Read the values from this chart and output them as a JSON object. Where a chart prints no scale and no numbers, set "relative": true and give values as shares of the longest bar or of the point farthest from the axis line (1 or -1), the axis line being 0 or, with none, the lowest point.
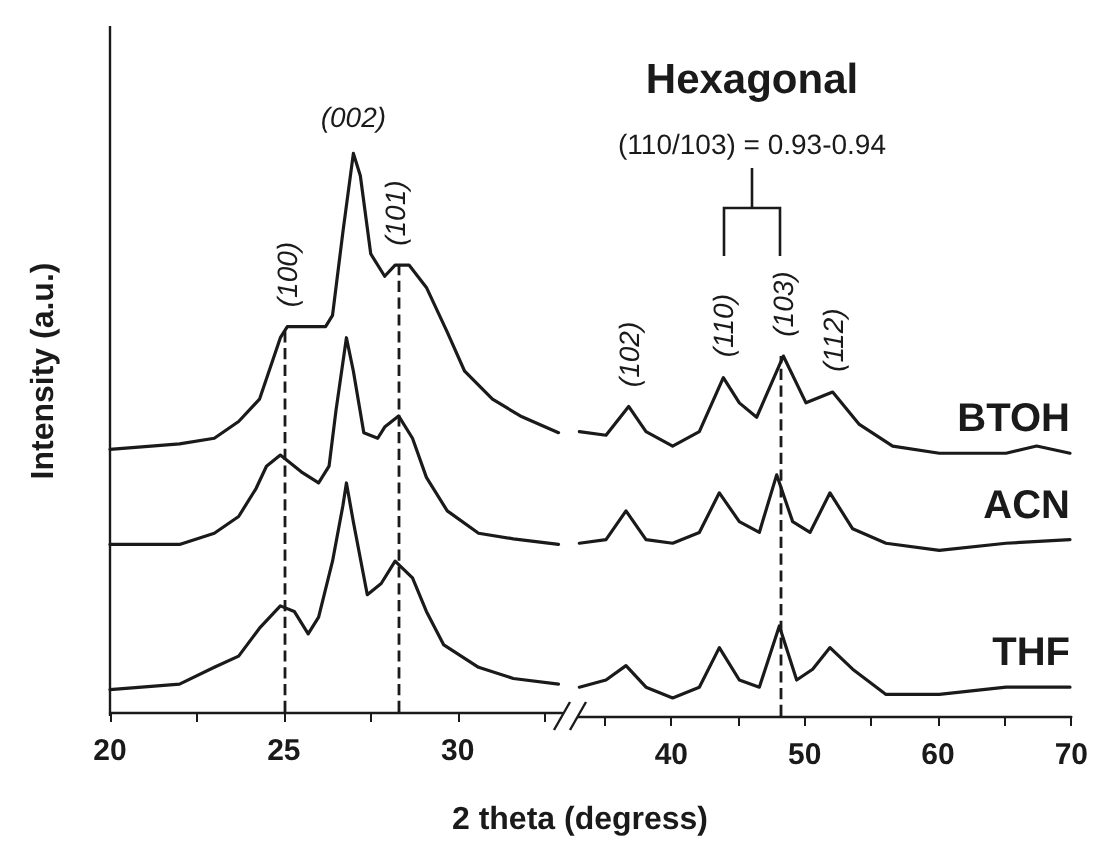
{
  "chart_data": [
    {
      "type": "line",
      "relative": true,
      "ylabel": "Intensity (a.u.)",
      "xlabel": "2 theta (degress)",
      "xlim": [
        20,
        33
      ],
      "xticks": [
        20,
        {
          "value": 22.5,
          "label": null
        },
        25,
        {
          "value": 27.5,
          "label": null
        },
        30,
        {
          "value": 32.5,
          "label": null
        }
      ],
      "tick_labels": "x",
      "grid": false,
      "marker": "none",
      "line_style": "solid",
      "series": [
        {
          "color": "#1a1a1a",
          "x": [
            20.0,
            22.0,
            23.0,
            23.7,
            24.3,
            24.9,
            25.1,
            26.2,
            26.4,
            26.7,
            27.0,
            27.2,
            27.5,
            27.9,
            28.2,
            28.6,
            29.1,
            29.7,
            30.2,
            31.0,
            31.8,
            32.9
          ],
          "values": [
            0.47,
            0.48,
            0.49,
            0.52,
            0.56,
            0.67,
            0.69,
            0.69,
            0.71,
            0.86,
            1.0,
            0.96,
            0.82,
            0.78,
            0.8,
            0.8,
            0.76,
            0.68,
            0.61,
            0.56,
            0.53,
            0.5
          ]
        },
        {
          "color": "#1a1a1a",
          "x": [
            20.0,
            22.0,
            23.0,
            23.7,
            24.2,
            24.5,
            24.9,
            25.5,
            26.0,
            26.3,
            26.5,
            26.8,
            27.0,
            27.3,
            27.7,
            27.9,
            28.3,
            28.7,
            29.1,
            29.7,
            30.6,
            31.6,
            32.9
          ],
          "values": [
            0.3,
            0.3,
            0.32,
            0.35,
            0.4,
            0.44,
            0.46,
            0.43,
            0.41,
            0.44,
            0.54,
            0.67,
            0.61,
            0.5,
            0.49,
            0.51,
            0.53,
            0.49,
            0.42,
            0.36,
            0.32,
            0.31,
            0.3
          ]
        },
        {
          "color": "#1a1a1a",
          "x": [
            20.0,
            22.0,
            23.0,
            23.7,
            24.3,
            24.9,
            25.3,
            25.7,
            26.0,
            26.4,
            26.7,
            26.8,
            27.0,
            27.4,
            27.8,
            28.2,
            28.7,
            29.1,
            29.6,
            30.6,
            31.6,
            32.9
          ],
          "values": [
            0.04,
            0.05,
            0.08,
            0.1,
            0.15,
            0.19,
            0.18,
            0.14,
            0.17,
            0.27,
            0.37,
            0.41,
            0.34,
            0.21,
            0.23,
            0.27,
            0.24,
            0.18,
            0.12,
            0.08,
            0.06,
            0.05
          ]
        }
      ],
      "ref_lines": [
        {
          "axis": "x",
          "value": 25,
          "line_style": "dashed",
          "color": "#1a1a1a"
        },
        {
          "axis": "x",
          "value": 28.3,
          "line_style": "dashed",
          "color": "#1a1a1a"
        }
      ],
      "annotations": [
        {
          "text": "(100)",
          "x": 25.1,
          "y": 0.69
        },
        {
          "text": "(002)",
          "x": 27.0,
          "y": 1.0
        },
        {
          "text": "(101)",
          "x": 28.2,
          "y": 0.8
        }
      ]
    },
    {
      "type": "line",
      "relative": true,
      "xlim": [
        33,
        70
      ],
      "xticks": [
        {
          "value": 35,
          "label": null
        },
        40,
        {
          "value": 45,
          "label": null
        },
        50,
        {
          "value": 55,
          "label": null
        },
        60,
        {
          "value": 65,
          "label": null
        },
        70
      ],
      "tick_labels": "x",
      "grid": false,
      "marker": "none",
      "line_style": "solid",
      "series": [
        {
          "name": "BTOH",
          "color": "#1a1a1a",
          "x": [
            33.1,
            35.1,
            36.8,
            38.1,
            40.1,
            42.1,
            43.9,
            45.1,
            46.4,
            48.4,
            50.1,
            52.1,
            54.1,
            56.6,
            60.1,
            65.1,
            67.4,
            69.9
          ],
          "values": [
            0.79,
            0.78,
            0.86,
            0.79,
            0.75,
            0.79,
            0.94,
            0.87,
            0.83,
            1.0,
            0.87,
            0.9,
            0.81,
            0.75,
            0.73,
            0.73,
            0.75,
            0.73
          ]
        },
        {
          "name": "ACN",
          "color": "#1a1a1a",
          "x": [
            33.1,
            35.1,
            36.6,
            38.1,
            40.1,
            42.1,
            43.6,
            45.1,
            46.6,
            47.9,
            49.1,
            50.4,
            51.9,
            53.6,
            56.1,
            60.1,
            65.1,
            69.9
          ],
          "values": [
            0.48,
            0.49,
            0.57,
            0.49,
            0.48,
            0.51,
            0.62,
            0.54,
            0.51,
            0.67,
            0.54,
            0.51,
            0.62,
            0.52,
            0.48,
            0.46,
            0.48,
            0.49
          ]
        },
        {
          "name": "THF",
          "color": "#1a1a1a",
          "x": [
            33.1,
            35.1,
            36.6,
            38.1,
            40.1,
            42.1,
            43.6,
            45.1,
            46.6,
            48.1,
            49.4,
            50.6,
            51.9,
            53.6,
            56.1,
            60.1,
            65.1,
            69.9
          ],
          "values": [
            0.08,
            0.1,
            0.14,
            0.08,
            0.05,
            0.08,
            0.19,
            0.1,
            0.08,
            0.25,
            0.1,
            0.13,
            0.19,
            0.13,
            0.06,
            0.06,
            0.08,
            0.08
          ]
        }
      ],
      "ref_lines": [
        {
          "axis": "x",
          "value": 48.2,
          "line_style": "dashed",
          "color": "#1a1a1a"
        }
      ],
      "annotations": [
        "Hexagonal",
        "(110/103) = 0.93-0.94",
        {
          "text": "(102)",
          "x": 36.8,
          "y": 0.86
        },
        {
          "text": "(110)",
          "x": 43.9,
          "y": 0.94
        },
        {
          "text": "(103)",
          "x": 48.4,
          "y": 1.0
        },
        {
          "text": "(112)",
          "x": 52.1,
          "y": 0.9
        }
      ]
    }
  ]
}
